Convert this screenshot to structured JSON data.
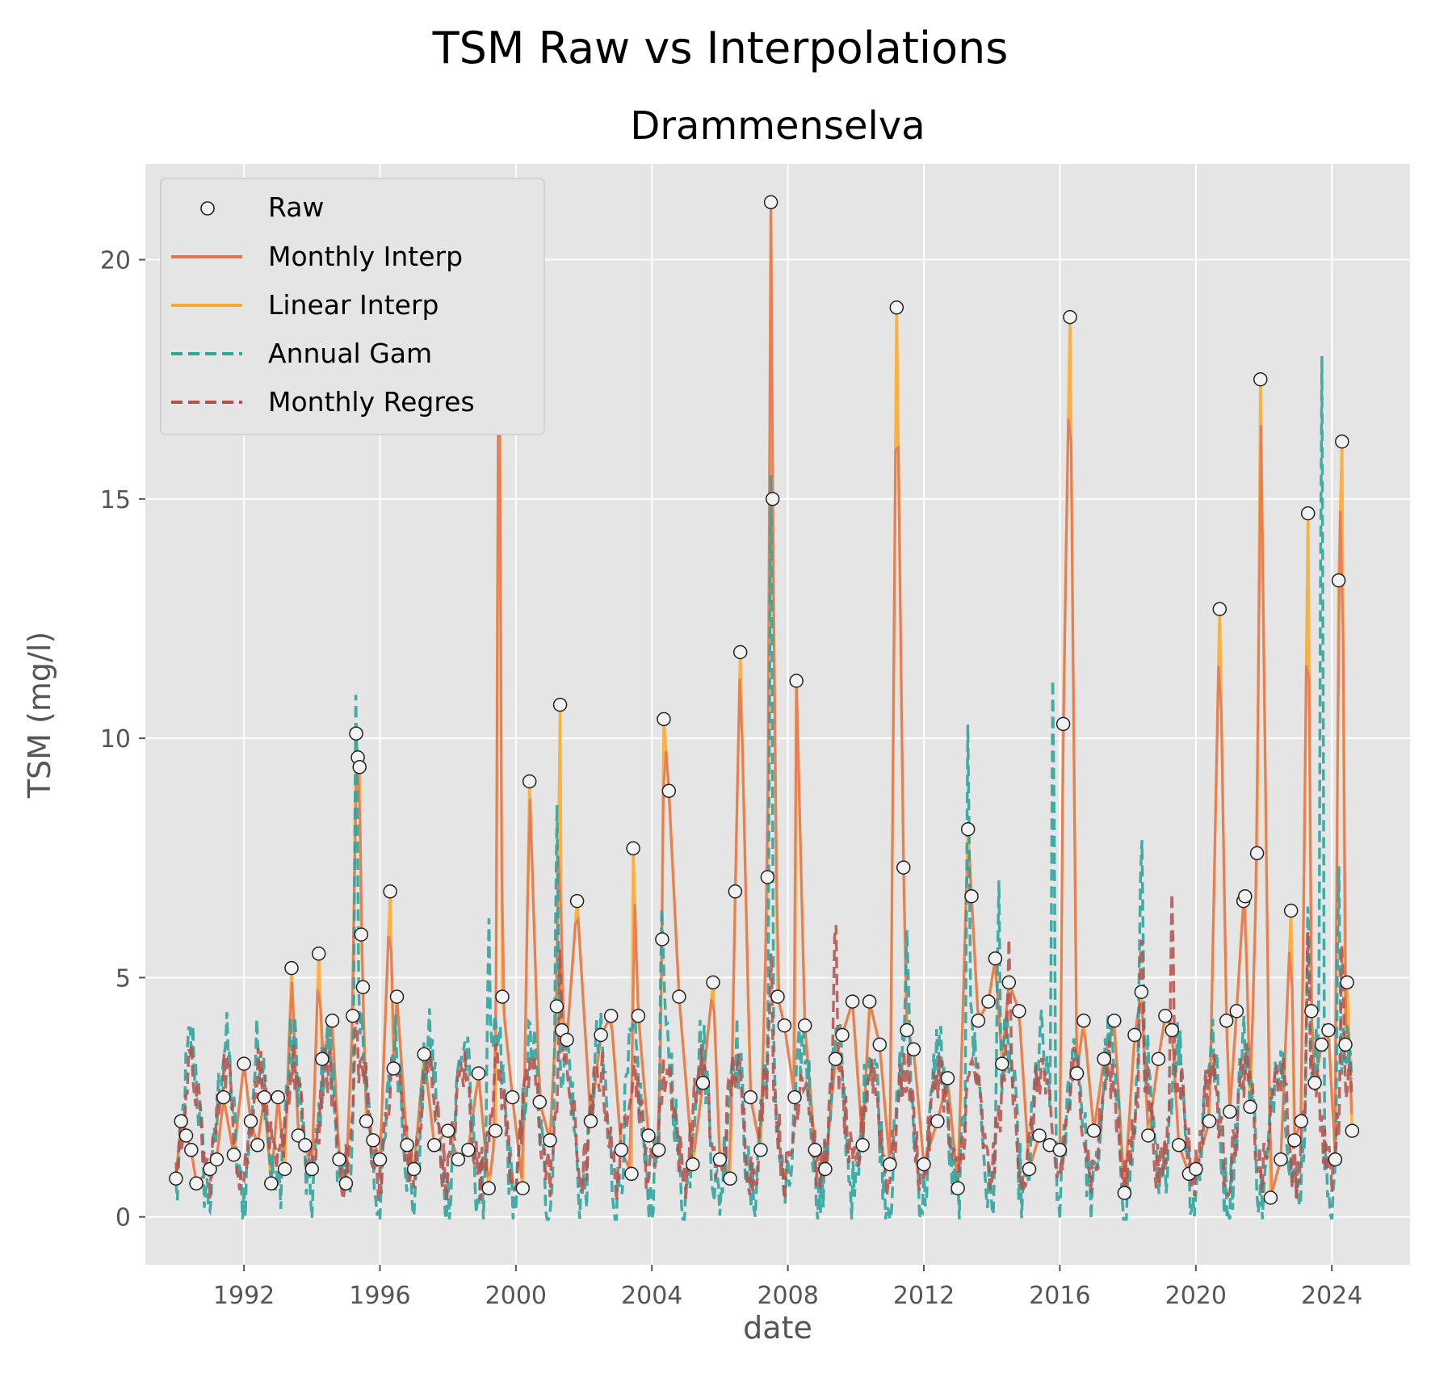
{
  "chart_data": {
    "type": "line",
    "suptitle": "TSM Raw vs Interpolations",
    "title": "Drammenselva",
    "xlabel": "date",
    "ylabel": "TSM (mg/l)",
    "xlim": [
      1989.1,
      2026.3
    ],
    "ylim": [
      -1.0,
      22.0
    ],
    "x_ticks": [
      1992,
      1996,
      2000,
      2004,
      2008,
      2012,
      2016,
      2020,
      2024
    ],
    "y_ticks": [
      0,
      5,
      10,
      15,
      20
    ],
    "grid": true,
    "legend_position": "top-left",
    "colors": {
      "Raw": "#f2f2f2",
      "Monthly Interp": "#e2725b",
      "Linear Interp": "#ffa726",
      "Annual Gam": "#31a49e",
      "Monthly Regres": "#b5504a"
    },
    "series": [
      {
        "name": "Raw",
        "style": "scatter",
        "x": [
          1990.0,
          1990.15,
          1990.3,
          1990.45,
          1990.6,
          1991.0,
          1991.2,
          1991.4,
          1991.7,
          1992.0,
          1992.2,
          1992.4,
          1992.6,
          1992.8,
          1993.0,
          1993.2,
          1993.4,
          1993.6,
          1993.8,
          1994.0,
          1994.2,
          1994.3,
          1994.6,
          1994.8,
          1995.0,
          1995.2,
          1995.3,
          1995.35,
          1995.4,
          1995.45,
          1995.5,
          1995.6,
          1995.8,
          1996.0,
          1996.3,
          1996.4,
          1996.5,
          1996.8,
          1997.0,
          1997.3,
          1997.6,
          1998.0,
          1998.3,
          1998.6,
          1998.9,
          1999.2,
          1999.4,
          1999.5,
          1999.6,
          1999.9,
          2000.2,
          2000.4,
          2000.7,
          2001.0,
          2001.2,
          2001.3,
          2001.35,
          2001.5,
          2001.8,
          2002.2,
          2002.5,
          2002.8,
          2003.1,
          2003.4,
          2003.45,
          2003.6,
          2003.9,
          2004.2,
          2004.3,
          2004.35,
          2004.5,
          2004.8,
          2005.2,
          2005.5,
          2005.8,
          2006.0,
          2006.3,
          2006.45,
          2006.6,
          2006.9,
          2007.2,
          2007.4,
          2007.5,
          2007.55,
          2007.7,
          2007.9,
          2008.2,
          2008.25,
          2008.5,
          2008.8,
          2009.1,
          2009.4,
          2009.6,
          2009.9,
          2010.2,
          2010.4,
          2010.7,
          2011.0,
          2011.2,
          2011.4,
          2011.5,
          2011.7,
          2012.0,
          2012.4,
          2012.7,
          2013.0,
          2013.3,
          2013.4,
          2013.6,
          2013.9,
          2014.1,
          2014.3,
          2014.5,
          2014.8,
          2015.1,
          2015.4,
          2015.7,
          2016.0,
          2016.1,
          2016.3,
          2016.5,
          2016.7,
          2017.0,
          2017.3,
          2017.6,
          2017.9,
          2018.2,
          2018.4,
          2018.6,
          2018.9,
          2019.1,
          2019.3,
          2019.5,
          2019.8,
          2020.0,
          2020.4,
          2020.7,
          2020.9,
          2021.0,
          2021.2,
          2021.4,
          2021.45,
          2021.6,
          2021.8,
          2021.9,
          2022.2,
          2022.5,
          2022.8,
          2022.9,
          2023.1,
          2023.3,
          2023.4,
          2023.5,
          2023.7,
          2023.9,
          2024.1,
          2024.2,
          2024.3,
          2024.4,
          2024.45,
          2024.6
        ],
        "y": [
          0.8,
          2.0,
          1.7,
          1.4,
          0.7,
          1.0,
          1.2,
          2.5,
          1.3,
          3.2,
          2.0,
          1.5,
          2.5,
          0.7,
          2.5,
          1.0,
          5.2,
          1.7,
          1.5,
          1.0,
          5.5,
          3.3,
          4.1,
          1.2,
          0.7,
          4.2,
          10.1,
          9.6,
          9.4,
          5.9,
          4.8,
          2.0,
          1.6,
          1.2,
          6.8,
          3.1,
          4.6,
          1.5,
          1.0,
          3.4,
          1.5,
          1.8,
          1.2,
          1.4,
          3.0,
          0.6,
          1.8,
          20.6,
          4.6,
          2.5,
          0.6,
          9.1,
          2.4,
          1.6,
          4.4,
          10.7,
          3.9,
          3.7,
          6.6,
          2.0,
          3.8,
          4.2,
          1.4,
          0.9,
          7.7,
          4.2,
          1.7,
          1.4,
          5.8,
          10.4,
          8.9,
          4.6,
          1.1,
          2.8,
          4.9,
          1.2,
          0.8,
          6.8,
          11.8,
          2.5,
          1.4,
          7.1,
          21.2,
          15.0,
          4.6,
          4.0,
          2.5,
          11.2,
          4.0,
          1.4,
          1.0,
          3.3,
          3.8,
          4.5,
          1.5,
          4.5,
          3.6,
          1.1,
          19.0,
          7.3,
          3.9,
          3.5,
          1.1,
          2.0,
          2.9,
          0.6,
          8.1,
          6.7,
          4.1,
          4.5,
          5.4,
          3.2,
          4.9,
          4.3,
          1.0,
          1.7,
          1.5,
          1.4,
          10.3,
          18.8,
          3.0,
          4.1,
          1.8,
          3.3,
          4.1,
          0.5,
          3.8,
          4.7,
          1.7,
          3.3,
          4.2,
          3.9,
          1.5,
          0.9,
          1.0,
          2.0,
          12.7,
          4.1,
          2.2,
          4.3,
          6.6,
          6.7,
          2.3,
          7.6,
          17.5,
          0.4,
          1.2,
          6.4,
          1.6,
          2.0,
          14.7,
          4.3,
          2.8,
          3.6,
          3.9,
          1.2,
          13.3,
          16.2,
          3.6,
          4.9,
          1.8
        ]
      },
      {
        "name": "Monthly Interp",
        "style": "solid"
      },
      {
        "name": "Linear Interp",
        "style": "solid"
      },
      {
        "name": "Annual Gam",
        "style": "dashed",
        "peaks": [
          [
            1995.3,
            11.7
          ],
          [
            1999.2,
            6.6
          ],
          [
            2001.2,
            9.3
          ],
          [
            2004.3,
            6.8
          ],
          [
            2007.5,
            15.5
          ],
          [
            2011.5,
            6.0
          ],
          [
            2013.3,
            11.1
          ],
          [
            2014.2,
            7.5
          ],
          [
            2015.8,
            12.3
          ],
          [
            2018.4,
            8.8
          ],
          [
            2023.3,
            6.8
          ],
          [
            2023.7,
            19.6
          ],
          [
            2024.2,
            7.8
          ]
        ]
      },
      {
        "name": "Monthly Regres",
        "style": "dashed",
        "peaks": [
          [
            1995.3,
            4.5
          ],
          [
            2001.3,
            5.9
          ],
          [
            2007.5,
            5.5
          ],
          [
            2009.4,
            6.8
          ],
          [
            2014.5,
            5.8
          ],
          [
            2018.4,
            6.5
          ],
          [
            2019.3,
            7.2
          ],
          [
            2023.3,
            6.3
          ],
          [
            2024.3,
            6.0
          ]
        ]
      }
    ]
  }
}
